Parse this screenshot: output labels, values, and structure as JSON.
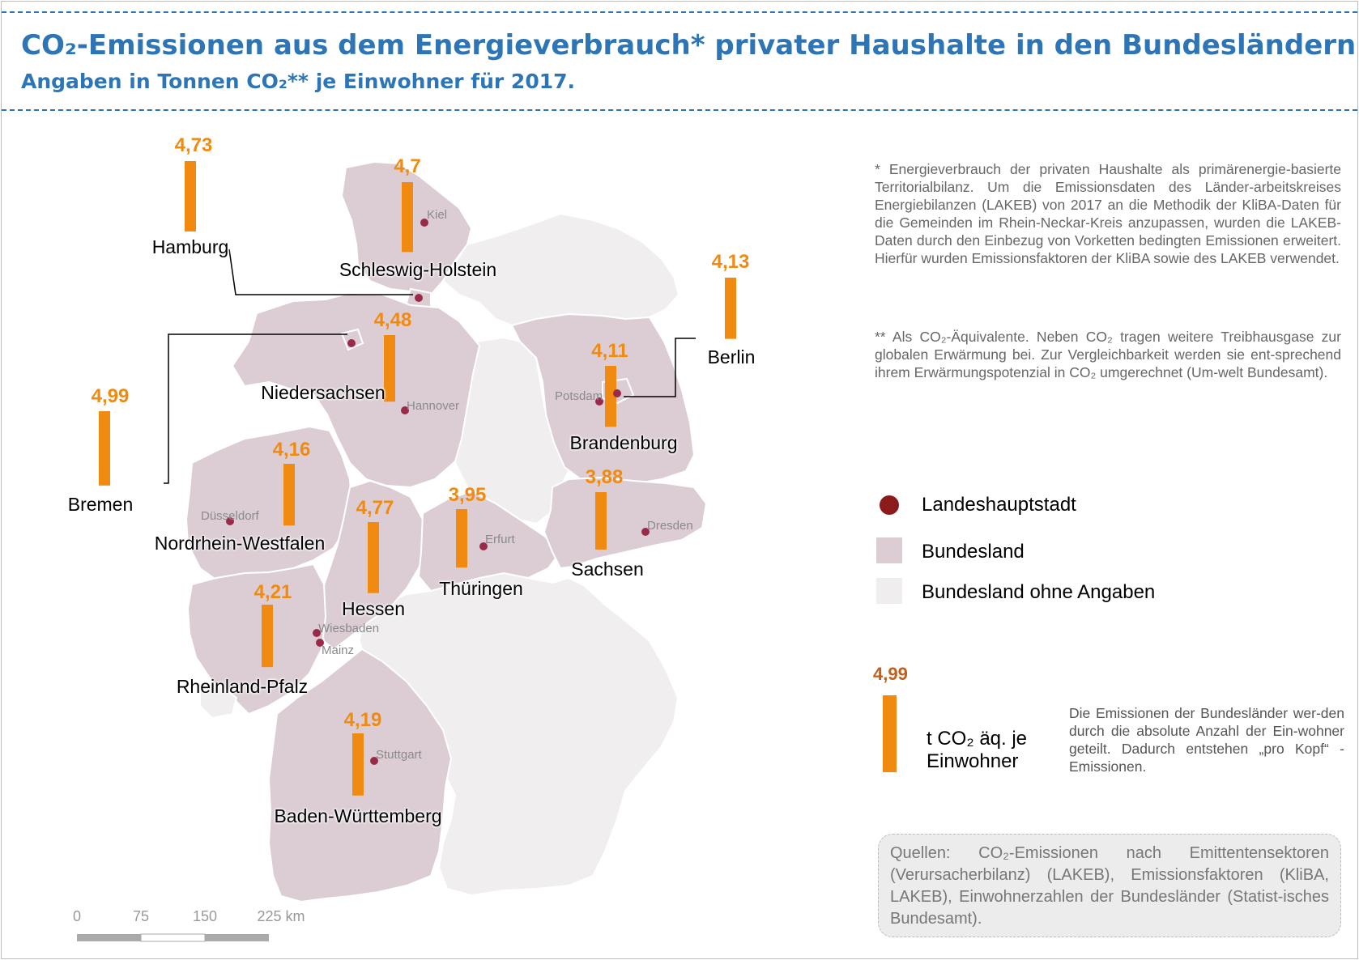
{
  "header": {
    "title": "CO₂-Emissionen aus dem Energieverbrauch* privater Haushalte in den Bundesländern.",
    "subtitle": "Angaben in Tonnen CO₂** je Einwohner für 2017."
  },
  "states": [
    {
      "id": "hamburg",
      "name": "Hamburg",
      "value": 4.73,
      "value_label": "4,73"
    },
    {
      "id": "schleswig-holstein",
      "name": "Schleswig-Holstein",
      "value": 4.7,
      "value_label": "4,7"
    },
    {
      "id": "berlin",
      "name": "Berlin",
      "value": 4.13,
      "value_label": "4,13"
    },
    {
      "id": "niedersachsen",
      "name": "Niedersachsen",
      "value": 4.48,
      "value_label": "4,48"
    },
    {
      "id": "brandenburg",
      "name": "Brandenburg",
      "value": 4.11,
      "value_label": "4,11"
    },
    {
      "id": "bremen",
      "name": "Bremen",
      "value": 4.99,
      "value_label": "4,99"
    },
    {
      "id": "nordrhein-westfalen",
      "name": "Nordrhein-Westfalen",
      "value": 4.16,
      "value_label": "4,16"
    },
    {
      "id": "hessen",
      "name": "Hessen",
      "value": 4.77,
      "value_label": "4,77"
    },
    {
      "id": "thueringen",
      "name": "Thüringen",
      "value": 3.95,
      "value_label": "3,95"
    },
    {
      "id": "sachsen",
      "name": "Sachsen",
      "value": 3.88,
      "value_label": "3,88"
    },
    {
      "id": "rheinland-pfalz",
      "name": "Rheinland-Pfalz",
      "value": 4.21,
      "value_label": "4,21"
    },
    {
      "id": "baden-wuerttemberg",
      "name": "Baden-Württemberg",
      "value": 4.19,
      "value_label": "4,19"
    }
  ],
  "cities": [
    "Kiel",
    "Hannover",
    "Potsdam",
    "Düsseldorf",
    "Erfurt",
    "Dresden",
    "Wiesbaden",
    "Mainz",
    "Stuttgart"
  ],
  "notes": {
    "footnote1": "* Energieverbrauch der privaten Haushalte als primärenergie-basierte Territorialbilanz. Um die Emissionsdaten des Länder-arbeitskreises Energiebilanzen (LAKEB) von 2017 an die Methodik der KliBA-Daten für die Gemeinden im Rhein-Neckar-Kreis anzupassen, wurden die LAKEB-Daten durch den Einbezug von Vorketten bedingten Emissionen erweitert. Hierfür wurden Emissionsfaktoren der KliBA sowie des LAKEB verwendet.",
    "footnote2": "** Als CO₂-Äquivalente. Neben CO₂ tragen weitere Treibhausgase zur globalen Erwärmung bei. Zur Vergleichbarkeit werden sie ent-sprechend ihrem Erwärmungspotenzial in CO₂ umgerechnet (Um-welt Bundesamt)."
  },
  "legend": {
    "capital": "Landeshauptstadt",
    "state": "Bundesland",
    "state_no_data": "Bundesland ohne Angaben",
    "sample_value": "4,99",
    "unit_line1": "t CO₂ äq. je",
    "unit_line2": "Einwohner",
    "description": "Die Emissionen der Bundesländer wer-den durch die absolute Anzahl der Ein-wohner geteilt. Dadurch entstehen „pro Kopf“ - Emissionen."
  },
  "sources": "Quellen: CO₂-Emissionen nach Emittentensektoren (Verursacherbilanz) (LAKEB), Emissionsfaktoren (KliBA, LAKEB), Einwohnerzahlen der Bundesländer (Statist-isches Bundesamt).",
  "scale": {
    "labels": [
      "0",
      "75",
      "150",
      "225 km"
    ]
  },
  "colors": {
    "title": "#2e75b6",
    "bar": "#f08a10",
    "value_text": "#f08a10",
    "state_fill": "#dccdd4",
    "state_no_data_fill": "#f0eeee",
    "capital_dot": "#8b1a1a",
    "city_dot": "#9a2a4a"
  }
}
